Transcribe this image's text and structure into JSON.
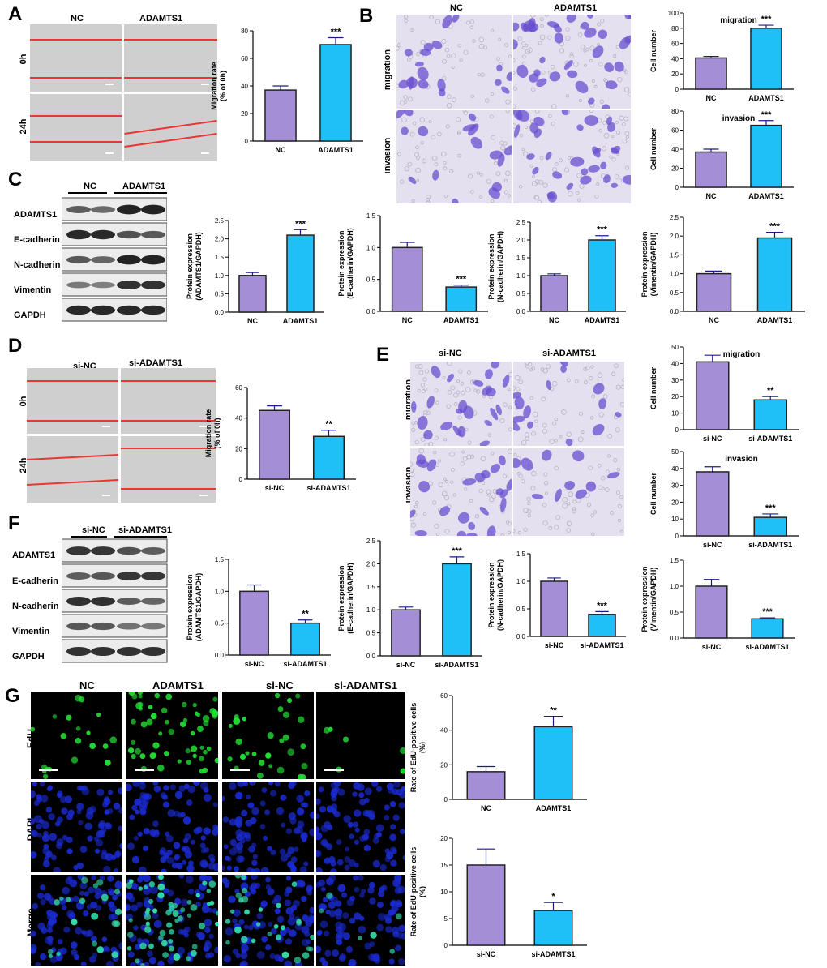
{
  "panels": {
    "A": "A",
    "B": "B",
    "C": "C",
    "D": "D",
    "E": "E",
    "F": "F",
    "G": "G"
  },
  "colors": {
    "purple": "#a48fd6",
    "blue": "#1ec0f7",
    "bar_outline": "#222222",
    "error_bar": "#1a1a8c",
    "red_line": "#e8312a",
    "crystal_violet": "#6a4fd0",
    "edu": "#22dd33",
    "dapi": "#1a2ad0"
  },
  "panel_a": {
    "col_labels": [
      "NC",
      "ADAMTS1"
    ],
    "row_labels": [
      "0h",
      "24h"
    ]
  },
  "panel_b": {
    "col_labels": [
      "NC",
      "ADAMTS1"
    ],
    "row_labels": [
      "migration",
      "invasion"
    ]
  },
  "panel_c": {
    "group_labels": [
      "NC",
      "ADAMTS1"
    ],
    "row_labels": [
      "ADAMTS1",
      "E-cadherin",
      "N-cadherin",
      "Vimentin",
      "GAPDH"
    ]
  },
  "panel_d": {
    "col_labels": [
      "si-NC",
      "si-ADAMTS1"
    ],
    "row_labels": [
      "0h",
      "24h"
    ]
  },
  "panel_e": {
    "col_labels": [
      "si-NC",
      "si-ADAMTS1"
    ],
    "row_labels": [
      "migration",
      "invasion"
    ]
  },
  "panel_f": {
    "group_labels": [
      "si-NC",
      "si-ADAMTS1"
    ],
    "row_labels": [
      "ADAMTS1",
      "E-cadherin",
      "N-cadherin",
      "Vimentin",
      "GAPDH"
    ]
  },
  "panel_g": {
    "col_labels": [
      "NC",
      "ADAMTS1",
      "si-NC",
      "si-ADAMTS1"
    ],
    "row_labels": [
      "EdU",
      "DAPI",
      "Merge"
    ]
  },
  "chart_data": [
    {
      "id": "A",
      "type": "bar",
      "categories": [
        "NC",
        "ADAMTS1"
      ],
      "values": [
        37,
        70
      ],
      "errors": [
        3,
        5
      ],
      "ylabel": "Migration rate\n(% of 0h)",
      "title": "",
      "ylim": [
        0,
        80
      ],
      "yticks": [
        0,
        20,
        40,
        60,
        80
      ],
      "sig": "***"
    },
    {
      "id": "B1",
      "type": "bar",
      "categories": [
        "NC",
        "ADAMTS1"
      ],
      "values": [
        41,
        80
      ],
      "errors": [
        2,
        4
      ],
      "ylabel": "Cell number",
      "title": "migration",
      "ylim": [
        0,
        100
      ],
      "yticks": [
        0,
        20,
        40,
        60,
        80,
        100
      ],
      "sig": "***"
    },
    {
      "id": "B2",
      "type": "bar",
      "categories": [
        "NC",
        "ADAMTS1"
      ],
      "values": [
        37,
        65
      ],
      "errors": [
        3,
        5
      ],
      "ylabel": "Cell number",
      "title": "invasion",
      "ylim": [
        0,
        80
      ],
      "yticks": [
        0,
        20,
        40,
        60,
        80
      ],
      "sig": "***"
    },
    {
      "id": "C1",
      "type": "bar",
      "categories": [
        "NC",
        "ADAMTS1"
      ],
      "values": [
        1.0,
        2.1
      ],
      "errors": [
        0.08,
        0.15
      ],
      "ylabel": "Protein expression\n(ADAMTS1/GAPDH)",
      "title": "",
      "ylim": [
        0,
        2.5
      ],
      "yticks": [
        0.0,
        0.5,
        1.0,
        1.5,
        2.0,
        2.5
      ],
      "sig": "***"
    },
    {
      "id": "C2",
      "type": "bar",
      "categories": [
        "NC",
        "ADAMTS1"
      ],
      "values": [
        1.0,
        0.38
      ],
      "errors": [
        0.08,
        0.03
      ],
      "ylabel": "Protein expression\n(E-cadherin/GAPDH)",
      "title": "",
      "ylim": [
        0,
        1.5
      ],
      "yticks": [
        0.0,
        0.5,
        1.0,
        1.5
      ],
      "sig": "***"
    },
    {
      "id": "C3",
      "type": "bar",
      "categories": [
        "NC",
        "ADAMTS1"
      ],
      "values": [
        1.0,
        2.0
      ],
      "errors": [
        0.05,
        0.12
      ],
      "ylabel": "Protein expression\n(N-cadherin/GAPDH)",
      "title": "",
      "ylim": [
        0,
        2.5
      ],
      "yticks": [
        0.0,
        0.5,
        1.0,
        1.5,
        2.0,
        2.5
      ],
      "sig": "***"
    },
    {
      "id": "C4",
      "type": "bar",
      "categories": [
        "NC",
        "ADAMTS1"
      ],
      "values": [
        1.0,
        1.95
      ],
      "errors": [
        0.07,
        0.15
      ],
      "ylabel": "Protein expression\n(Vimentin/GAPDH)",
      "title": "",
      "ylim": [
        0,
        2.5
      ],
      "yticks": [
        0.0,
        0.5,
        1.0,
        1.5,
        2.0,
        2.5
      ],
      "sig": "***"
    },
    {
      "id": "D",
      "type": "bar",
      "categories": [
        "si-NC",
        "si-ADAMTS1"
      ],
      "values": [
        45,
        28
      ],
      "errors": [
        3,
        4
      ],
      "ylabel": "Migration rate\n(% of 0h)",
      "title": "",
      "ylim": [
        0,
        60
      ],
      "yticks": [
        0,
        20,
        40,
        60
      ],
      "sig": "**"
    },
    {
      "id": "E1",
      "type": "bar",
      "categories": [
        "si-NC",
        "si-ADAMTS1"
      ],
      "values": [
        41,
        18
      ],
      "errors": [
        4,
        2
      ],
      "ylabel": "Cell number",
      "title": "migration",
      "ylim": [
        0,
        50
      ],
      "yticks": [
        0,
        10,
        20,
        30,
        40,
        50
      ],
      "sig": "**"
    },
    {
      "id": "E2",
      "type": "bar",
      "categories": [
        "si-NC",
        "si-ADAMTS1"
      ],
      "values": [
        38,
        11
      ],
      "errors": [
        3,
        2
      ],
      "ylabel": "Cell number",
      "title": "invasion",
      "ylim": [
        0,
        50
      ],
      "yticks": [
        0,
        10,
        20,
        30,
        40,
        50
      ],
      "sig": "***"
    },
    {
      "id": "F1",
      "type": "bar",
      "categories": [
        "si-NC",
        "si-ADAMTS1"
      ],
      "values": [
        1.0,
        0.5
      ],
      "errors": [
        0.1,
        0.05
      ],
      "ylabel": "Protein expression\n(ADAMTS1/GAPDH)",
      "title": "",
      "ylim": [
        0,
        1.5
      ],
      "yticks": [
        0.0,
        0.5,
        1.0,
        1.5
      ],
      "sig": "**"
    },
    {
      "id": "F2",
      "type": "bar",
      "categories": [
        "si-NC",
        "si-ADAMTS1"
      ],
      "values": [
        1.0,
        2.0
      ],
      "errors": [
        0.06,
        0.15
      ],
      "ylabel": "Protein expression\n(E-cadherin/GAPDH)",
      "title": "",
      "ylim": [
        0,
        2.5
      ],
      "yticks": [
        0.0,
        0.5,
        1.0,
        1.5,
        2.0,
        2.5
      ],
      "sig": "***"
    },
    {
      "id": "F3",
      "type": "bar",
      "categories": [
        "si-NC",
        "si-ADAMTS1"
      ],
      "values": [
        1.0,
        0.4
      ],
      "errors": [
        0.06,
        0.05
      ],
      "ylabel": "Protein expression\n(N-cadherin/GAPDH)",
      "title": "",
      "ylim": [
        0,
        1.5
      ],
      "yticks": [
        0.0,
        0.5,
        1.0,
        1.5
      ],
      "sig": "***"
    },
    {
      "id": "F4",
      "type": "bar",
      "categories": [
        "si-NC",
        "si-ADAMTS1"
      ],
      "values": [
        1.0,
        0.37
      ],
      "errors": [
        0.13,
        0.02
      ],
      "ylabel": "Protein expression\n(Vimentin/GAPDH)",
      "title": "",
      "ylim": [
        0,
        1.5
      ],
      "yticks": [
        0.0,
        0.5,
        1.0,
        1.5
      ],
      "sig": "***"
    },
    {
      "id": "G1",
      "type": "bar",
      "categories": [
        "NC",
        "ADAMTS1"
      ],
      "values": [
        16,
        42
      ],
      "errors": [
        3,
        6
      ],
      "ylabel": "Rate of EdU-positive cells\n(%)",
      "title": "",
      "ylim": [
        0,
        60
      ],
      "yticks": [
        0,
        20,
        40,
        60
      ],
      "sig": "**"
    },
    {
      "id": "G2",
      "type": "bar",
      "categories": [
        "si-NC",
        "si-ADAMTS1"
      ],
      "values": [
        15,
        6.5
      ],
      "errors": [
        3,
        1.5
      ],
      "ylabel": "Rate of EdU-positive cells\n(%)",
      "title": "",
      "ylim": [
        0,
        20
      ],
      "yticks": [
        0,
        5,
        10,
        15,
        20
      ],
      "sig": "*"
    }
  ]
}
